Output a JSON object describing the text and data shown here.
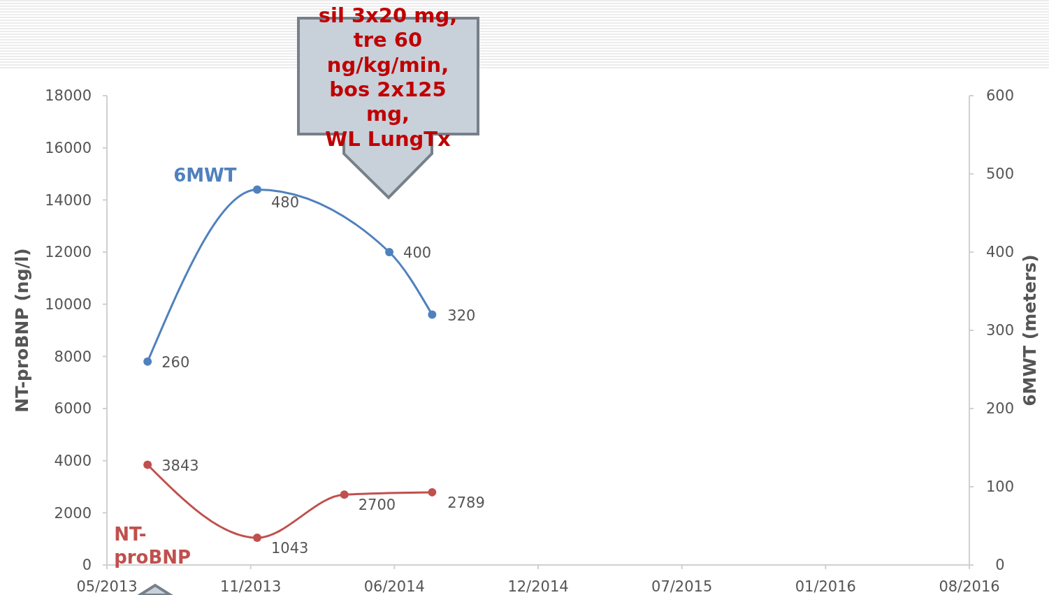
{
  "chart_data": {
    "type": "line",
    "ylabel": "NT-proBNP (ng/l)",
    "y2label": "6MWT (meters)",
    "xlim": [
      "2013-05-01",
      "2016-08-01"
    ],
    "xticks": [
      {
        "value": "2013-05-01",
        "label": "05/2013"
      },
      {
        "value": "2013-11-15",
        "label": "11/2013"
      },
      {
        "value": "2014-06-01",
        "label": "06/2014"
      },
      {
        "value": "2014-12-16",
        "label": "12/2014"
      },
      {
        "value": "2015-07-02",
        "label": "07/2015"
      },
      {
        "value": "2016-01-16",
        "label": "01/2016"
      },
      {
        "value": "2016-08-01",
        "label": "08/2016"
      }
    ],
    "ylim": [
      0,
      18000
    ],
    "yticks": [
      0,
      2000,
      4000,
      6000,
      8000,
      10000,
      12000,
      14000,
      16000,
      18000
    ],
    "y2lim": [
      0,
      600
    ],
    "y2ticks": [
      0,
      100,
      200,
      300,
      400,
      500,
      600
    ],
    "series": [
      {
        "name": "NT-proBNP",
        "color": "#c0504d",
        "x": [
          "2013-06-26",
          "2013-11-24",
          "2014-03-24",
          "2014-07-23"
        ],
        "values": [
          3843,
          1043,
          2700,
          2789
        ]
      },
      {
        "name": "6MWT",
        "color": "#4f81bd",
        "axis": "y2",
        "x": [
          "2013-06-26",
          "2013-11-24",
          "2014-05-25",
          "2014-07-23"
        ],
        "values": [
          260,
          480,
          400,
          320
        ]
      }
    ],
    "data_labels": true,
    "marker": "circle",
    "grid": false,
    "annotations": [
      "sil 3x20 mg,\ntre 60\nng/kg/min,\nbos 2x125\nmg,\nWL LungTx"
    ]
  }
}
